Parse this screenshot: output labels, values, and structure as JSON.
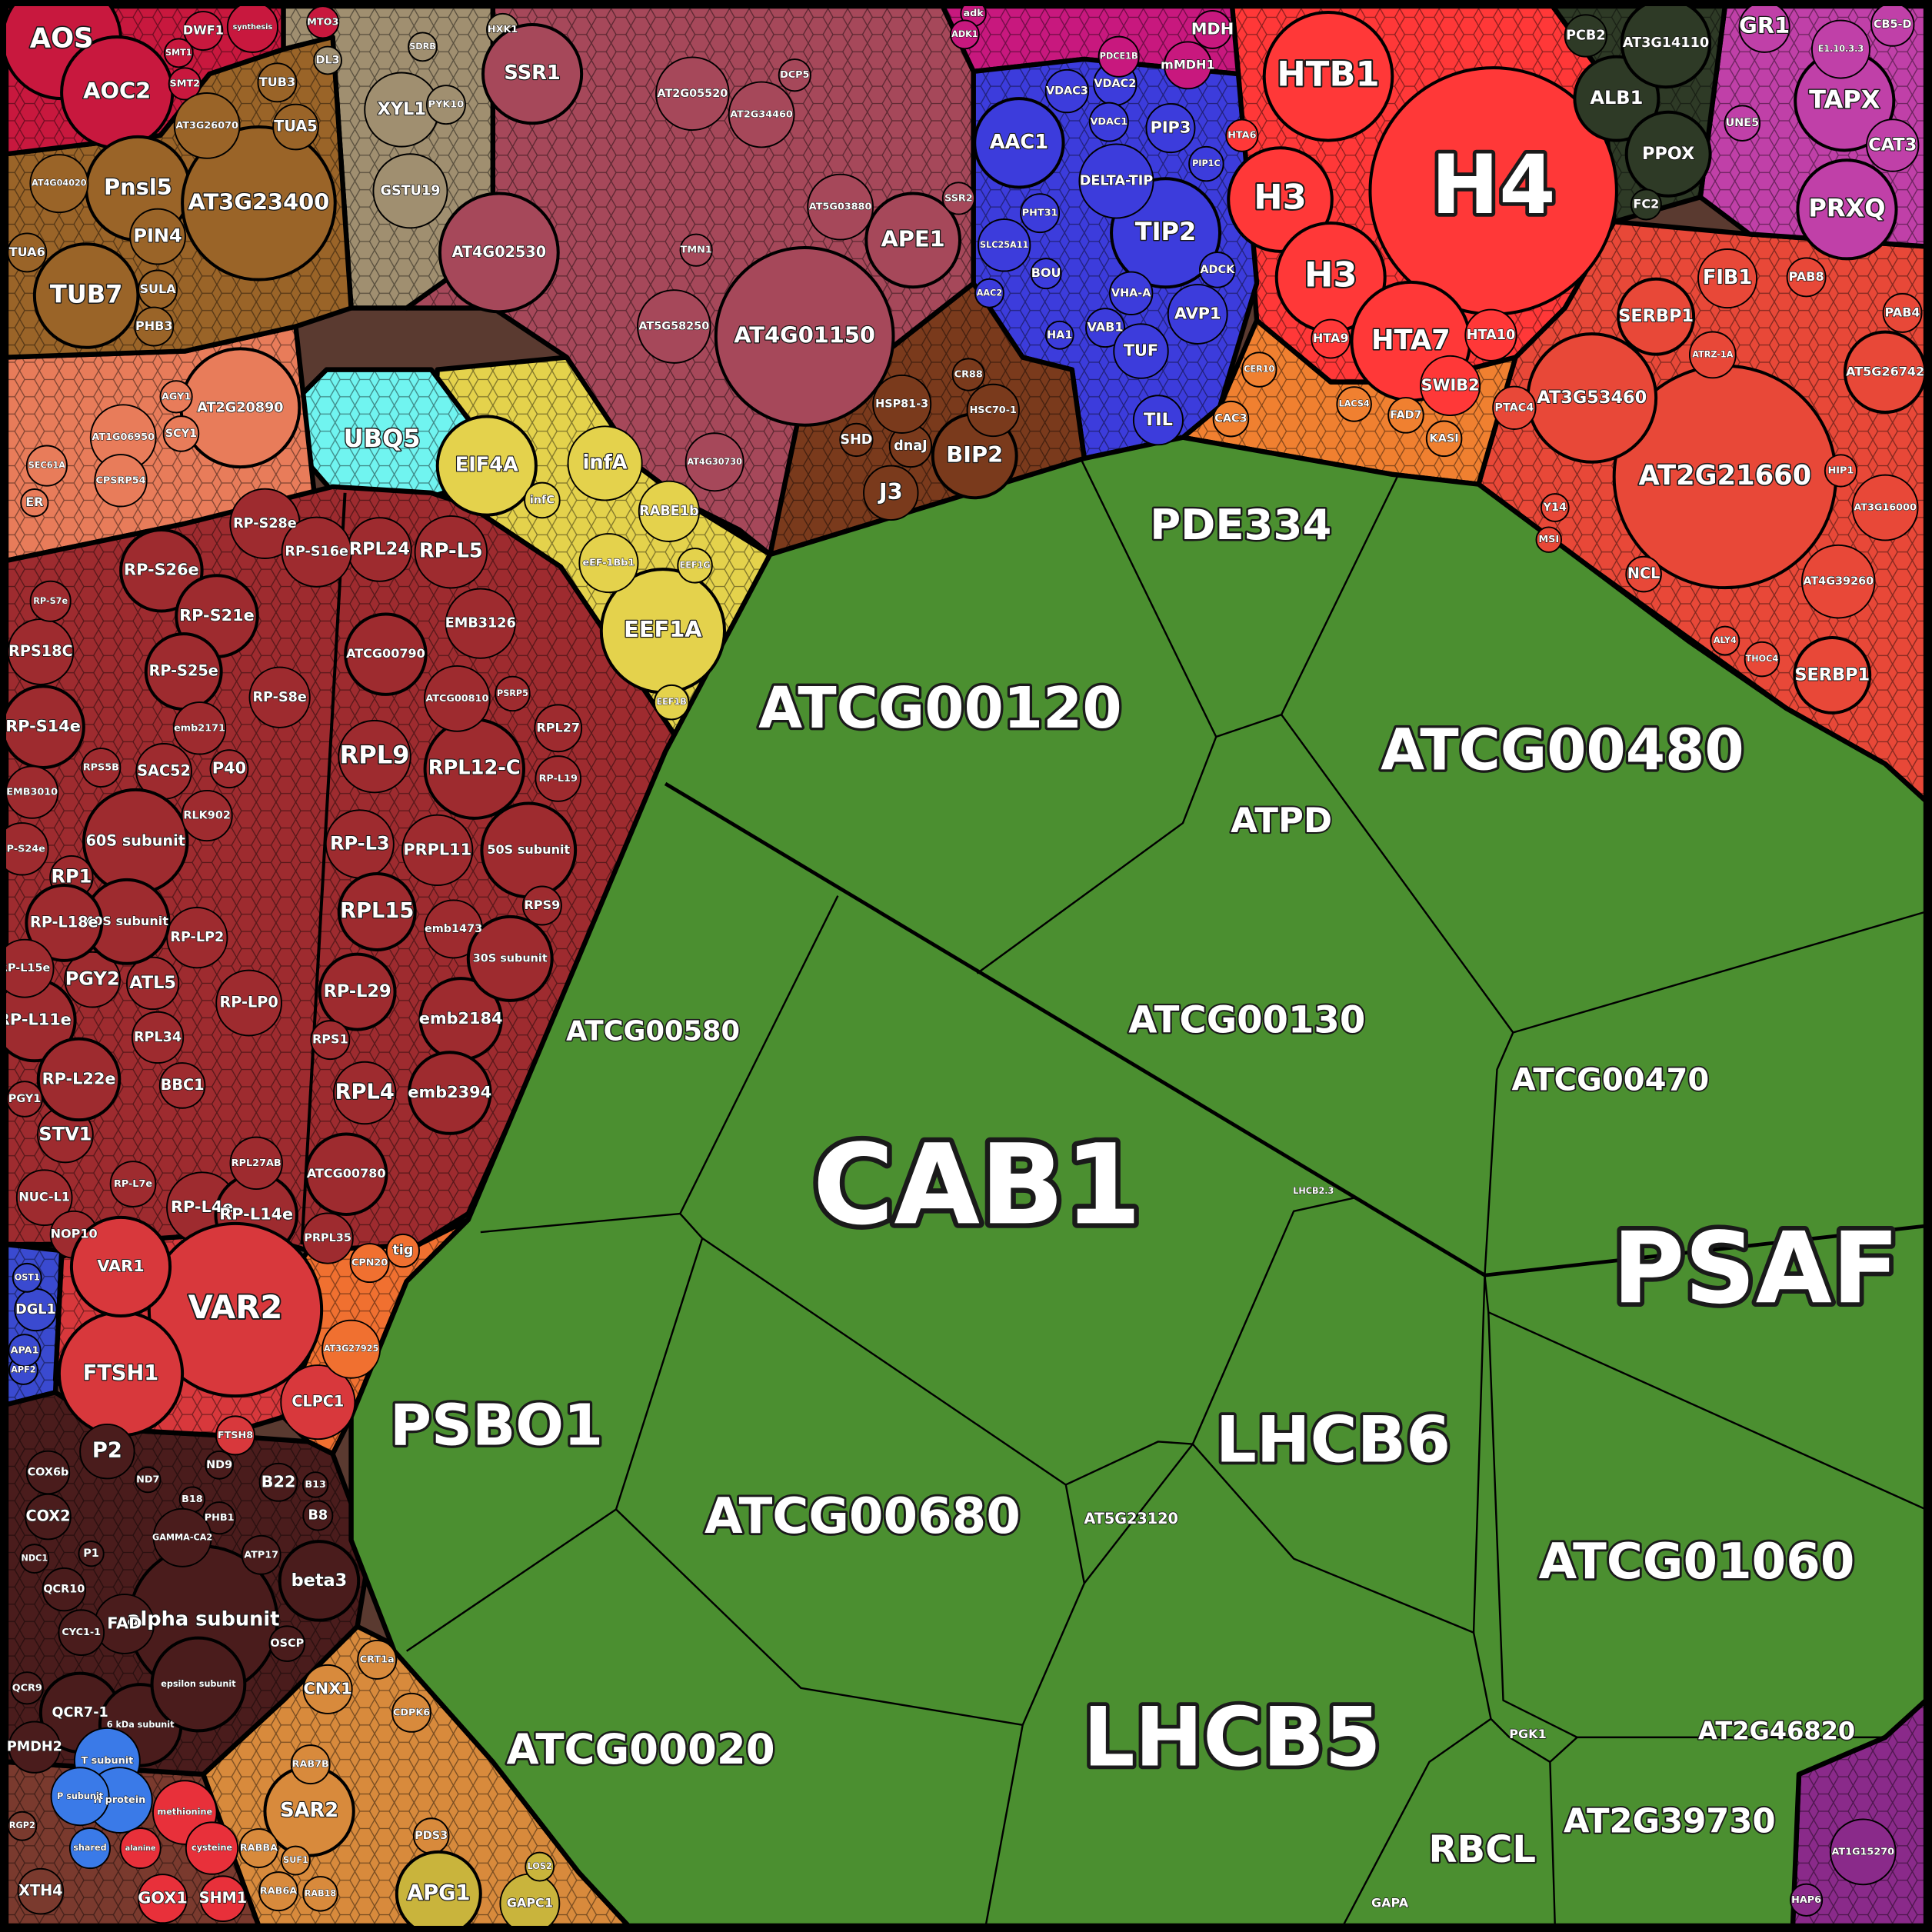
{
  "chart_data": {
    "type": "voronoi-treemap",
    "groups": [
      {
        "color": "#4b8f30",
        "cells": [
          "CAB1",
          "PSAF",
          "ATCG00120",
          "ATCG00480",
          "PDE334",
          "ATPD",
          "ATCG00130",
          "ATCG00470",
          "ATCG00580",
          "LHCB6",
          "PSBO1",
          "ATCG00680",
          "ATCG01060",
          "LHCB5",
          "ATCG00020",
          "RBCL",
          "AT2G39730",
          "AT2G46820",
          "AT5G23120",
          "PGK1",
          "GAPA",
          "LHCB2.3"
        ]
      },
      {
        "color": "#9e2b2f",
        "cells": [
          "RPL24",
          "RP-L5",
          "EMB3126",
          "ATCG00790",
          "RPL9",
          "RPL12-C",
          "RP-L3",
          "PRPL11",
          "50S subunit",
          "RPL15",
          "RP-L29",
          "emb2184",
          "RPL4",
          "emb2394",
          "ATCG00780",
          "RPS1",
          "emb1473",
          "RPS9",
          "30S subunit",
          "PSRP5",
          "RPL27",
          "RP-L19",
          "ATCG00810",
          "PRPL35",
          "RP-S28e",
          "RP-S16e",
          "RP-S26e",
          "RP-S21e",
          "RPS18C",
          "RP-S14e",
          "SAC52",
          "P40",
          "60S subunit",
          "RP-S25e",
          "RPL34",
          "BBC1",
          "PGY2",
          "ATL5",
          "RP-LP0",
          "RP-LP2",
          "40S subunit",
          "RP1",
          "RP-L18e",
          "RP-L11e",
          "STV1",
          "RP-L22e",
          "RP-L4e",
          "RP-L14e",
          "RP-S8e",
          "RPL27AB",
          "RLK902",
          "EMB3010",
          "RP-L7e",
          "NUC-L1",
          "NOP10",
          "PGY1",
          "RP-S7e",
          "RPS5B",
          "emb2171",
          "RP-L15e",
          "RP-S24e"
        ]
      },
      {
        "color": "#d8383c",
        "cells": [
          "VAR2",
          "FTSH1",
          "VAR1",
          "CLPC1",
          "FTSH8"
        ]
      },
      {
        "color": "#4a1c1c",
        "cells": [
          "P2",
          "COX2",
          "COX6b",
          "alpha subunit",
          "beta3",
          "B22",
          "B8",
          "B13",
          "B18",
          "ND9",
          "ND7",
          "FAD",
          "OSCP",
          "QCR10",
          "CYC1-1",
          "QCR7-1",
          "6 kDa subunit",
          "epsilon subunit",
          "PHB1",
          "GAMMA-CA2",
          "P1",
          "ATP17",
          "NDC1",
          "QCR9",
          "PMDH2"
        ]
      },
      {
        "color": "#d88a3c",
        "cells": [
          "SAR2",
          "CNX1",
          "RABBA",
          "RAB7B",
          "RAB6A",
          "RAB18",
          "CDPK6",
          "SUF1",
          "PDS3",
          "CRT1a"
        ]
      },
      {
        "color": "#c9b43c",
        "cells": [
          "APG1",
          "GAPC1",
          "LOS2"
        ]
      },
      {
        "color": "#7a3a2e",
        "cells": [
          "XTH4",
          "RGP2"
        ]
      },
      {
        "color": "#3a7ae8",
        "cells": [
          "T subunit",
          "H protein",
          "P subunit",
          "shared"
        ]
      },
      {
        "color": "#e8303a",
        "cells": [
          "GOX1",
          "SHM1",
          "methionine",
          "cysteine",
          "alanine"
        ]
      },
      {
        "color": "#c8183e",
        "cells": [
          "AOS",
          "AOC2",
          "DWF1",
          "SMT1",
          "SMT2",
          "synthesis",
          "MTO3"
        ]
      },
      {
        "color": "#9a6428",
        "cells": [
          "Pnsl5",
          "AT3G23400",
          "PIN4",
          "TUB7",
          "TUB3",
          "TUA5",
          "AT3G26070",
          "TUA6",
          "SULA",
          "PHB3",
          "AT4G04020"
        ]
      },
      {
        "color": "#e87c5a",
        "cells": [
          "AT2G20890",
          "AT1G06950",
          "SCY1",
          "AGY1",
          "CPSRP54",
          "ER",
          "SEC61A"
        ]
      },
      {
        "color": "#a08f70",
        "cells": [
          "XYL1",
          "GSTU19",
          "DL3",
          "PYK10",
          "SDRB",
          "HXK1"
        ]
      },
      {
        "color": "#a6485a",
        "cells": [
          "SSR1",
          "AT4G02530",
          "AT4G01150",
          "APE1",
          "AT2G05520",
          "AT2G34460",
          "TMN1",
          "AT5G58250",
          "AT5G03880",
          "SSR2",
          "AT4G30730",
          "DCP5"
        ]
      },
      {
        "color": "#70f4f0",
        "cells": [
          "UBQ5"
        ]
      },
      {
        "color": "#e4d24c",
        "cells": [
          "EIF4A",
          "infA",
          "EEF1A",
          "RABE1b",
          "eEF-1Bb1",
          "EEF1G",
          "EEF1B",
          "infC"
        ]
      },
      {
        "color": "#7a3a1c",
        "cells": [
          "BIP2",
          "J3",
          "SHD",
          "dnaJ",
          "HSP81-3",
          "CR88",
          "HSC70-1"
        ]
      },
      {
        "color": "#3c3cdc",
        "cells": [
          "AAC1",
          "TIP2",
          "PIP3",
          "DELTA-TIP",
          "VDAC3",
          "VDAC2",
          "VDAC1",
          "PHT31",
          "BOU",
          "SLC25A11",
          "VHA-A",
          "VAB1",
          "TUF",
          "AVP1",
          "ADCK",
          "TIL",
          "HA1",
          "AAC2",
          "PIP1C"
        ]
      },
      {
        "color": "#c8187e",
        "cells": [
          "MDH",
          "mMDH1",
          "PDCE1B",
          "adk",
          "ADK1"
        ]
      },
      {
        "color": "#ff3838",
        "cells": [
          "H4",
          "HTB1",
          "H3",
          "H3",
          "HTA7",
          "HTA10",
          "HTA9",
          "SWIB2",
          "HTA6"
        ]
      },
      {
        "color": "#f08030",
        "cells": [
          "CAC3",
          "KASI",
          "FAD7",
          "LACS4",
          "CER10"
        ]
      },
      {
        "color": "#2e3a26",
        "cells": [
          "ALB1",
          "PPOX",
          "PCB2",
          "AT3G14110",
          "FC2"
        ]
      },
      {
        "color": "#c040a8",
        "cells": [
          "GR1",
          "TAPX",
          "CAT3",
          "PRXQ",
          "UNE5",
          "E1.10.3.3",
          "CB5-D"
        ]
      },
      {
        "color": "#e84838",
        "cells": [
          "AT2G21660",
          "AT3G53460",
          "FIB1",
          "SERBP1",
          "SERBP1",
          "NCL",
          "AT4G39260",
          "PAB8",
          "PAB4",
          "AT5G26742",
          "PTAC4",
          "MSI",
          "Y14",
          "HIP1",
          "AT3G16000",
          "THOC4",
          "ALY4",
          "ATRZ-1A"
        ]
      },
      {
        "color": "#8a2a8a",
        "cells": [
          "AT1G15270",
          "HAP6"
        ]
      },
      {
        "color": "#3a4ad0",
        "cells": [
          "DGL1",
          "APF2",
          "APA1",
          "OST1"
        ]
      },
      {
        "color": "#f07030",
        "cells": [
          "CPN20",
          "tig",
          "AT3G27925"
        ]
      }
    ]
  }
}
